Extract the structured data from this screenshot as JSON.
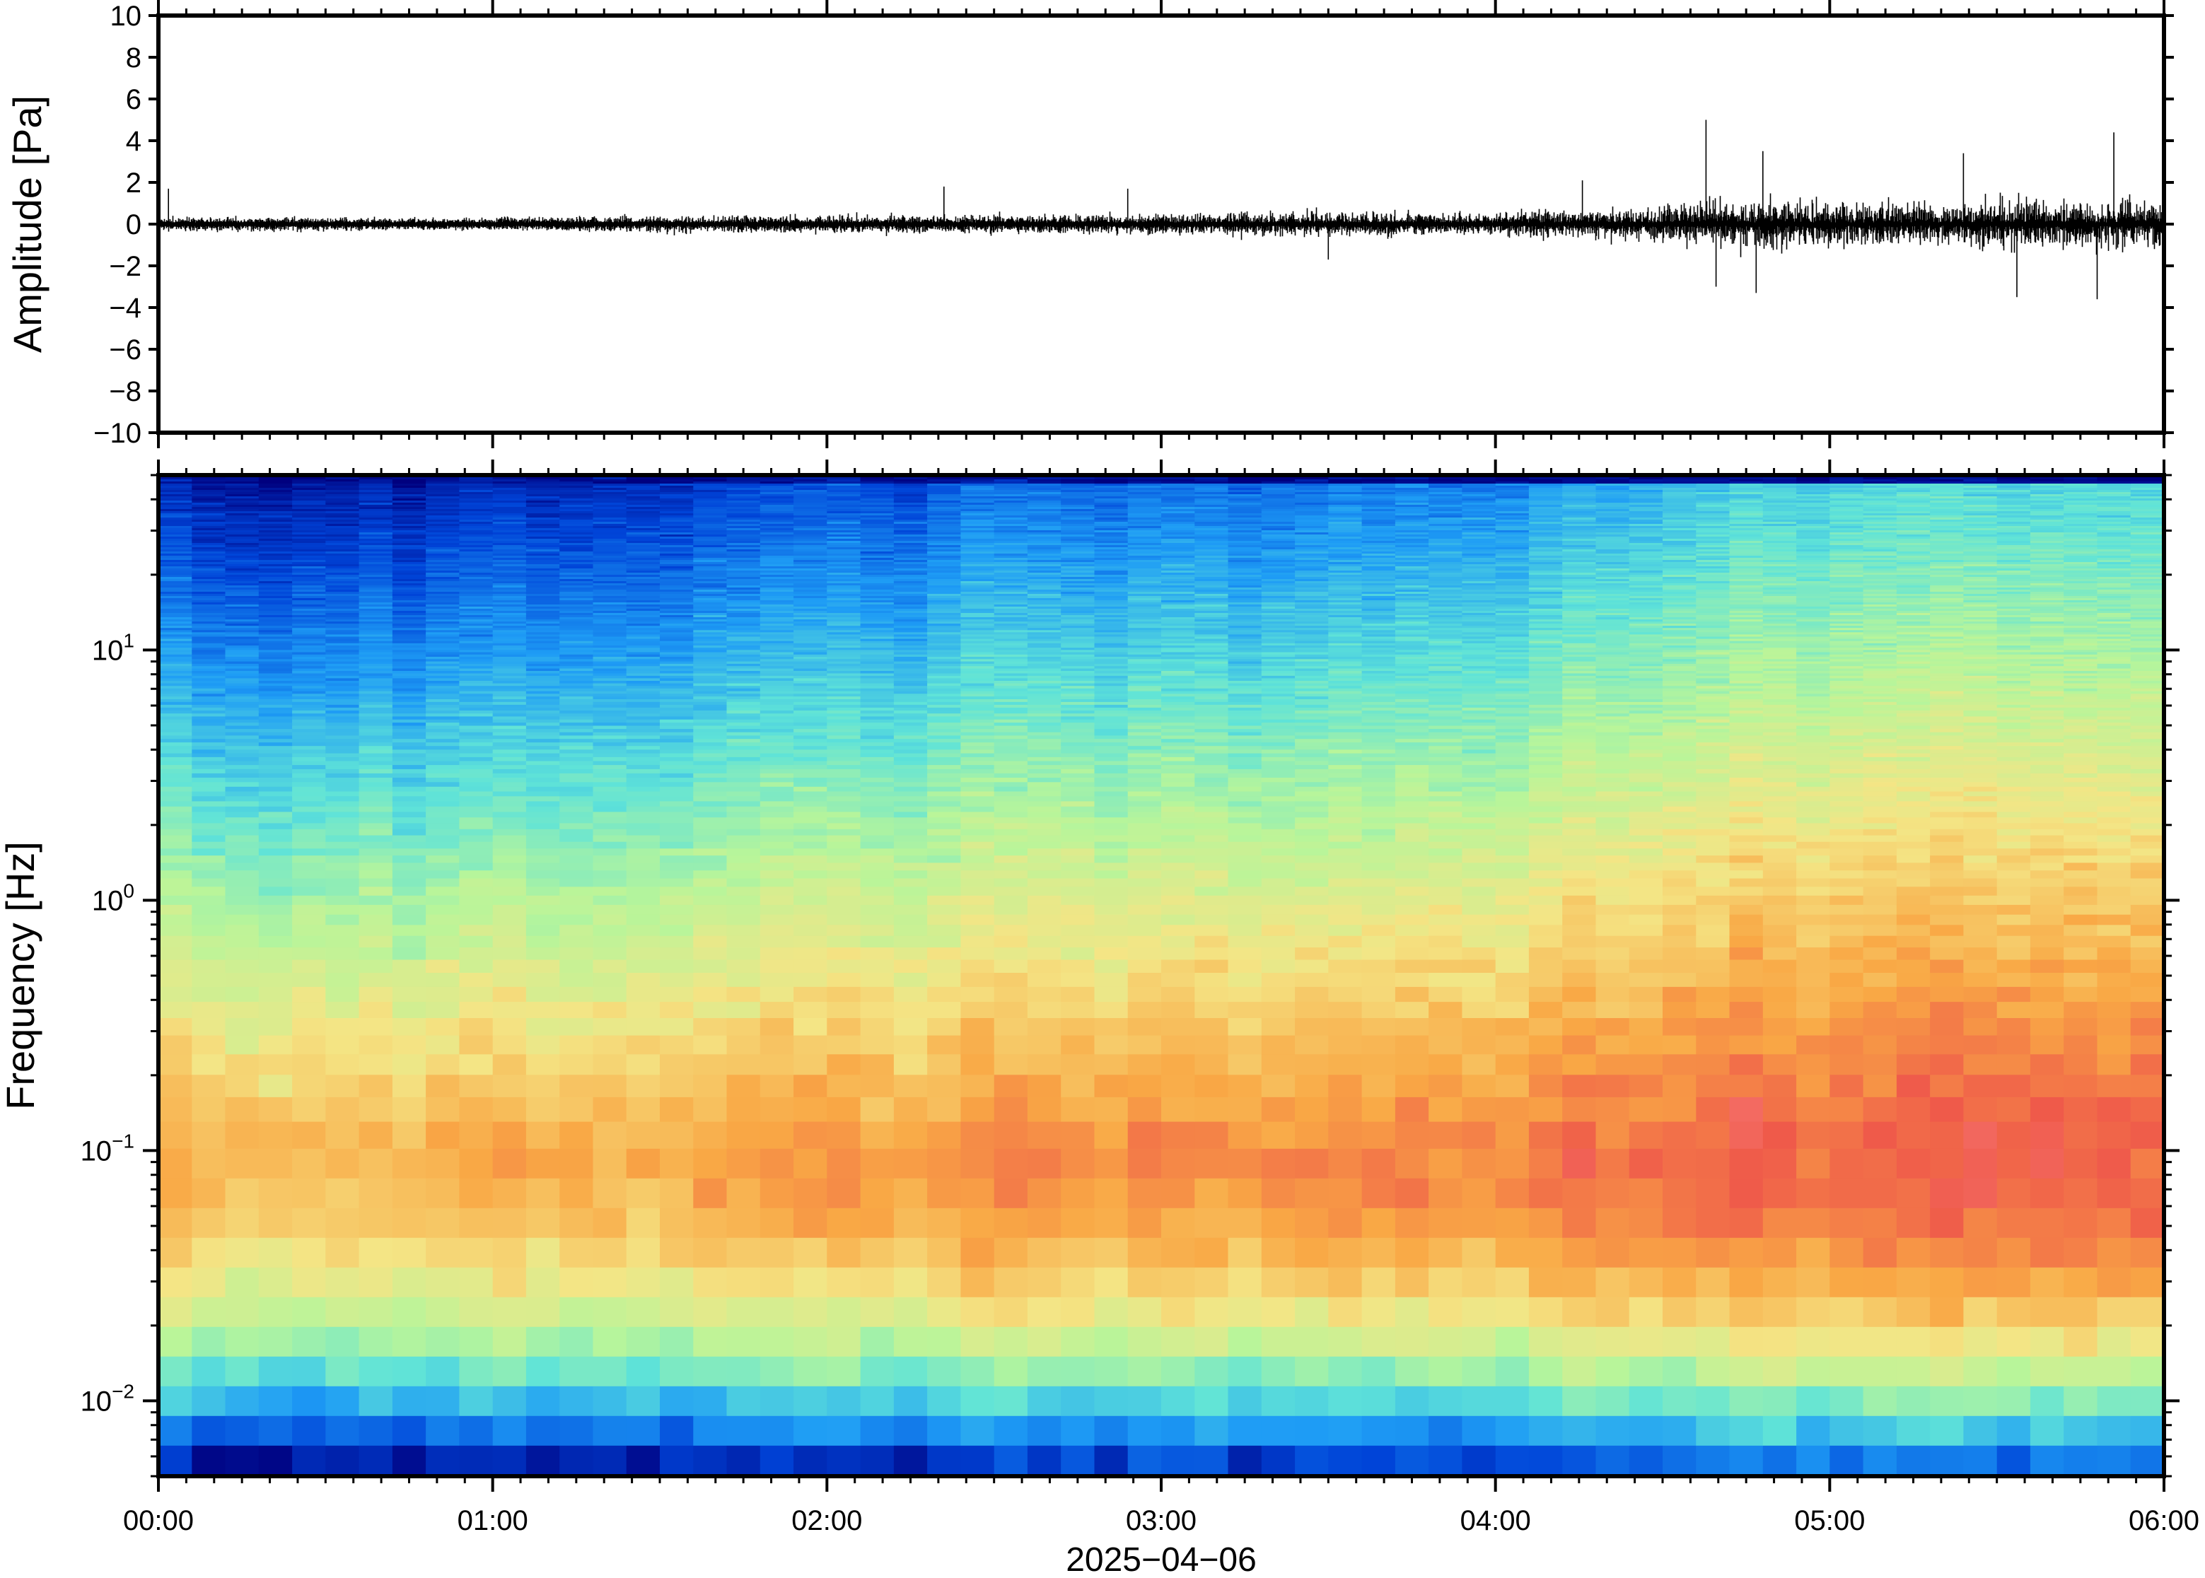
{
  "chart_data": [
    {
      "type": "line",
      "title": "",
      "ylabel": "Amplitude [Pa]",
      "ylim": [
        -10,
        10
      ],
      "y_ticks": [
        "10",
        "8",
        "6",
        "4",
        "2",
        "0",
        "−2",
        "−4",
        "−6",
        "−8",
        "−10"
      ],
      "y_tick_values": [
        10,
        8,
        6,
        4,
        2,
        0,
        -2,
        -4,
        -6,
        -8,
        -10
      ],
      "xlim_hours": [
        0,
        6
      ],
      "series": [
        {
          "line_color": "#000000",
          "envelope_hours": [
            0,
            0.25,
            0.5,
            0.75,
            1.0,
            1.25,
            1.5,
            1.75,
            2.0,
            2.25,
            2.5,
            2.75,
            3.0,
            3.25,
            3.5,
            3.75,
            4.0,
            4.25,
            4.5,
            4.6,
            4.75,
            5.0,
            5.25,
            5.5,
            5.75,
            6.0
          ],
          "envelope_amplitude_pa": [
            0.35,
            0.35,
            0.35,
            0.3,
            0.3,
            0.45,
            0.45,
            0.45,
            0.5,
            0.5,
            0.55,
            0.55,
            0.6,
            0.65,
            0.7,
            0.65,
            0.7,
            0.9,
            1.0,
            1.5,
            1.6,
            1.4,
            1.3,
            1.5,
            1.6,
            1.7
          ],
          "peaks": [
            {
              "t": 0.03,
              "value": 1.7
            },
            {
              "t": 2.35,
              "value": 1.8
            },
            {
              "t": 2.9,
              "value": 1.7
            },
            {
              "t": 3.5,
              "value": -1.7
            },
            {
              "t": 4.26,
              "value": 2.1
            },
            {
              "t": 4.63,
              "value": 5.0
            },
            {
              "t": 4.66,
              "value": -3.0
            },
            {
              "t": 4.8,
              "value": 3.5
            },
            {
              "t": 4.78,
              "value": -3.3
            },
            {
              "t": 5.4,
              "value": 3.4
            },
            {
              "t": 5.56,
              "value": -3.5
            },
            {
              "t": 5.85,
              "value": 4.4
            },
            {
              "t": 5.8,
              "value": -3.6
            }
          ]
        }
      ]
    },
    {
      "type": "heatmap",
      "title": "",
      "ylabel": "Frequency [Hz]",
      "yscale": "log",
      "ylim": [
        0.005,
        50
      ],
      "y_ticks": [
        {
          "value": 10,
          "base": "10",
          "exp": "1"
        },
        {
          "value": 1,
          "base": "10",
          "exp": "0"
        },
        {
          "value": 0.1,
          "base": "10",
          "exp": "−1"
        },
        {
          "value": 0.01,
          "base": "10",
          "exp": "−2"
        }
      ],
      "xlabel": "2025−04−06",
      "x_ticks": [
        "00:00",
        "01:00",
        "02:00",
        "03:00",
        "04:00",
        "05:00",
        "06:00"
      ],
      "x_tick_hours": [
        0,
        1,
        2,
        3,
        4,
        5,
        6
      ],
      "xlim_hours": [
        0,
        6
      ],
      "colormap": [
        "#00007f",
        "#0044d8",
        "#1e9cf5",
        "#5fe3d8",
        "#b8f59a",
        "#f4e585",
        "#f9a845",
        "#ef5a4a",
        "#ff9aa8"
      ],
      "colorbar": "none",
      "time_columns": 60,
      "intensity_model": {
        "description_units": "normalized colormap position 0-1",
        "ridge_frequency_hz": 0.12,
        "microbarom_band_hz": [
          0.04,
          0.3
        ],
        "low_frequency_floor_hz": 0.012,
        "nyquist_hz": 48,
        "activity_by_hour": [
          {
            "hour": 0,
            "level": 0.0
          },
          {
            "hour": 1,
            "level": 0.05
          },
          {
            "hour": 2,
            "level": 0.25
          },
          {
            "hour": 3,
            "level": 0.45
          },
          {
            "hour": 4,
            "level": 0.55
          },
          {
            "hour": 4.6,
            "level": 0.85
          },
          {
            "hour": 5,
            "level": 0.95
          },
          {
            "hour": 6,
            "level": 1.0
          }
        ]
      }
    }
  ]
}
